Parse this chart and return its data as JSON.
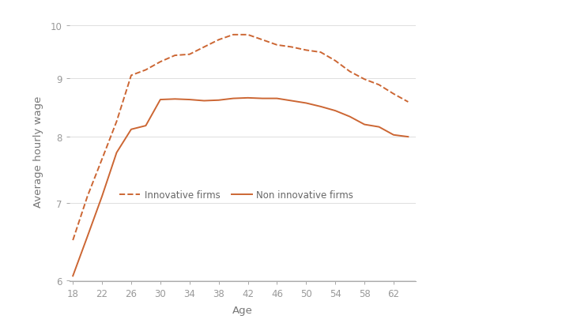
{
  "age": [
    18,
    20,
    22,
    24,
    26,
    28,
    30,
    32,
    34,
    36,
    38,
    40,
    42,
    44,
    46,
    48,
    50,
    52,
    54,
    56,
    58,
    60,
    62,
    64
  ],
  "innovative": [
    6.5,
    7.1,
    7.65,
    8.25,
    9.05,
    9.15,
    9.3,
    9.42,
    9.44,
    9.58,
    9.72,
    9.82,
    9.82,
    9.72,
    9.62,
    9.58,
    9.52,
    9.48,
    9.32,
    9.12,
    8.98,
    8.88,
    8.72,
    8.58
  ],
  "non_innovative": [
    6.05,
    6.55,
    7.1,
    7.75,
    8.12,
    8.18,
    8.62,
    8.63,
    8.62,
    8.6,
    8.61,
    8.64,
    8.65,
    8.64,
    8.64,
    8.6,
    8.56,
    8.5,
    8.43,
    8.33,
    8.2,
    8.16,
    8.03,
    8.0
  ],
  "line_color": "#cc6633",
  "ylabel": "Average hourly wage",
  "xlabel": "Age",
  "yticks": [
    6,
    7,
    8,
    9,
    10
  ],
  "xticks": [
    18,
    22,
    26,
    30,
    34,
    38,
    42,
    46,
    50,
    54,
    58,
    62
  ],
  "ylim_log": [
    1.79,
    2.31
  ],
  "xlim": [
    17.5,
    65
  ],
  "legend_innovative": "Innovative firms",
  "legend_non_innovative": "Non innovative firms",
  "bg_color": "#ffffff",
  "grid_color": "#d0d0d0"
}
